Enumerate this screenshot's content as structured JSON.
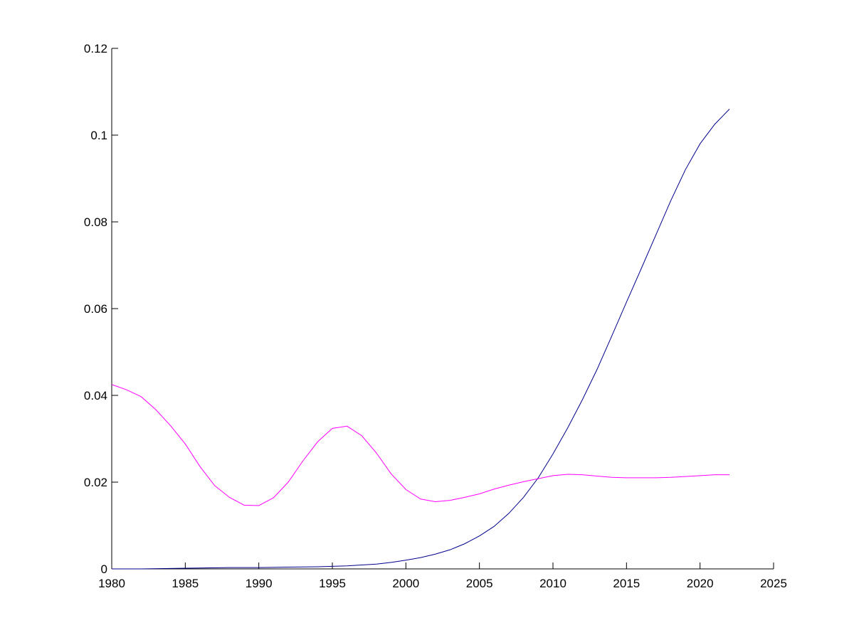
{
  "chart_data": {
    "type": "line",
    "title": "",
    "xlabel": "",
    "ylabel": "",
    "xlim": [
      1980,
      2025
    ],
    "ylim": [
      0,
      0.12
    ],
    "x_ticks": [
      1980,
      1985,
      1990,
      1995,
      2000,
      2005,
      2010,
      2015,
      2020,
      2025
    ],
    "y_ticks": [
      0,
      0.02,
      0.04,
      0.06,
      0.08,
      0.1,
      0.12
    ],
    "x_tick_labels": [
      "1980",
      "1985",
      "1990",
      "1995",
      "2000",
      "2005",
      "2010",
      "2015",
      "2020",
      "2025"
    ],
    "y_tick_labels": [
      "0",
      "0.02",
      "0.04",
      "0.06",
      "0.08",
      "0.1",
      "0.12"
    ],
    "grid": false,
    "legend": "none",
    "series": [
      {
        "color": "#00008b",
        "x": [
          1980,
          1982,
          1984,
          1986,
          1988,
          1990,
          1992,
          1994,
          1996,
          1997,
          1998,
          1999,
          2000,
          2001,
          2002,
          2003,
          2004,
          2005,
          2006,
          2007,
          2008,
          2009,
          2010,
          2011,
          2012,
          2013,
          2014,
          2015,
          2016,
          2017,
          2018,
          2019,
          2020,
          2021,
          2022
        ],
        "y": [
          0,
          0,
          0.0001,
          0.0002,
          0.0003,
          0.0003,
          0.0004,
          0.0005,
          0.0007,
          0.0009,
          0.0011,
          0.0015,
          0.002,
          0.0026,
          0.0034,
          0.0044,
          0.0058,
          0.0076,
          0.0098,
          0.0128,
          0.0165,
          0.021,
          0.0265,
          0.0325,
          0.039,
          0.046,
          0.0537,
          0.0615,
          0.0692,
          0.077,
          0.0848,
          0.092,
          0.098,
          0.1025,
          0.106
        ]
      },
      {
        "color": "#ff00ff",
        "x": [
          1980,
          1981,
          1982,
          1983,
          1984,
          1985,
          1986,
          1987,
          1988,
          1989,
          1990,
          1991,
          1992,
          1993,
          1994,
          1995,
          1996,
          1997,
          1998,
          1999,
          2000,
          2001,
          2002,
          2003,
          2004,
          2005,
          2006,
          2007,
          2008,
          2009,
          2010,
          2011,
          2012,
          2013,
          2014,
          2015,
          2016,
          2017,
          2018,
          2019,
          2020,
          2021,
          2022
        ],
        "y": [
          0.0425,
          0.0413,
          0.0397,
          0.0367,
          0.033,
          0.0288,
          0.0236,
          0.0192,
          0.0165,
          0.0147,
          0.0146,
          0.0164,
          0.02,
          0.0249,
          0.0293,
          0.0324,
          0.0329,
          0.0307,
          0.0267,
          0.0219,
          0.0183,
          0.0161,
          0.0155,
          0.0158,
          0.0165,
          0.0173,
          0.0184,
          0.0193,
          0.0201,
          0.0208,
          0.0215,
          0.0218,
          0.0217,
          0.0214,
          0.0211,
          0.021,
          0.021,
          0.021,
          0.0211,
          0.0213,
          0.0215,
          0.0217,
          0.0217
        ]
      }
    ]
  }
}
